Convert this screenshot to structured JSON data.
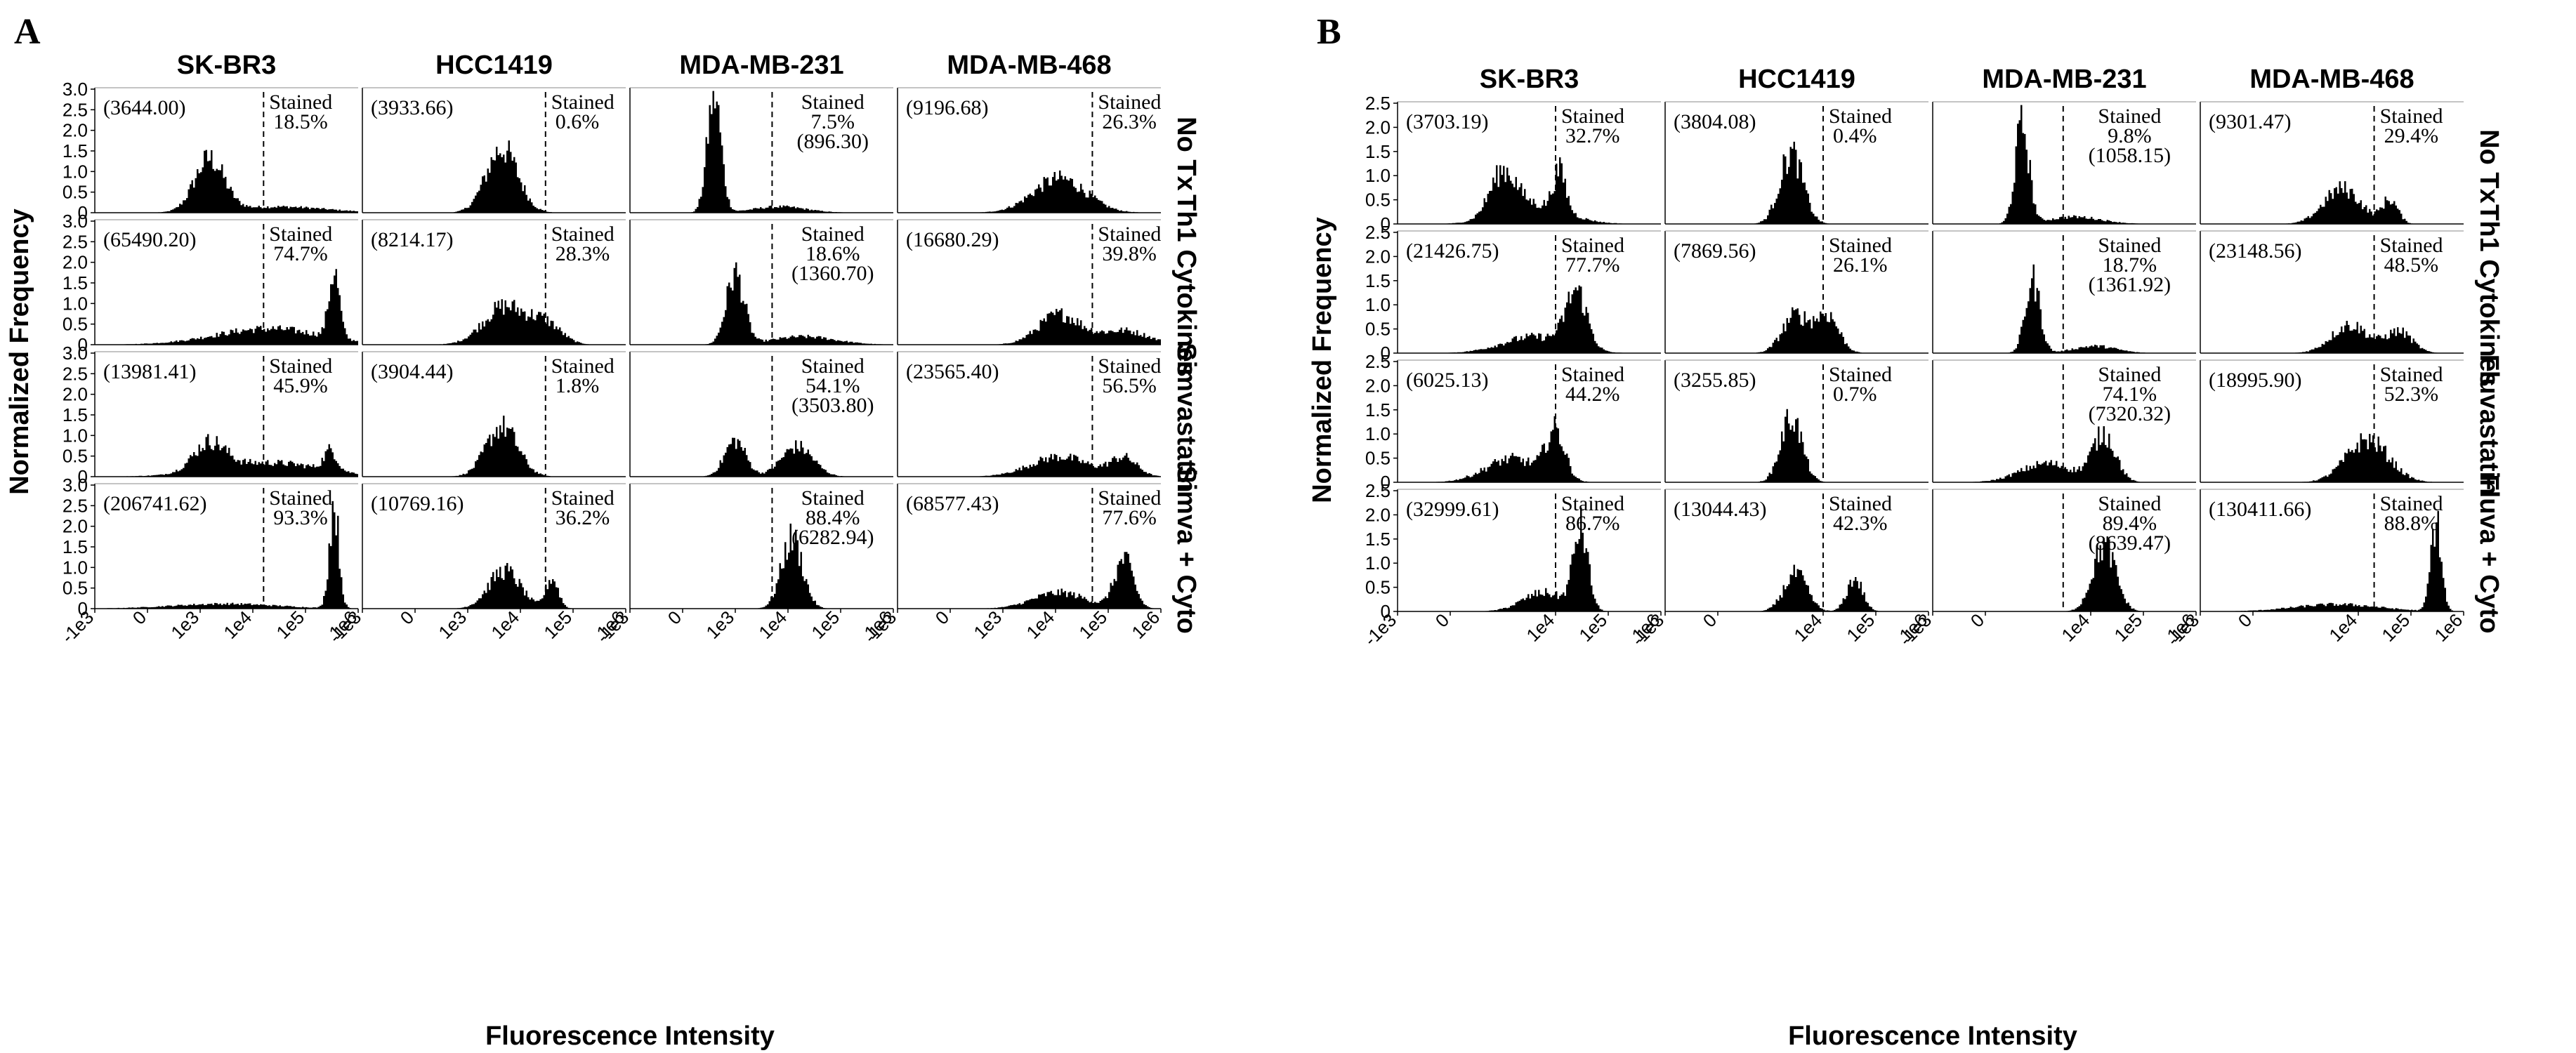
{
  "panels": [
    {
      "letter": "A",
      "x_label": "Fluorescence Intensity",
      "y_label": "Normalized Frequency",
      "y_ticks": [
        "0",
        "0.5",
        "1.0",
        "1.5",
        "2.0",
        "2.5",
        "3.0"
      ],
      "x_ticks": [
        "-1e3",
        "0",
        "1e3",
        "1e4",
        "1e5",
        "1e6"
      ],
      "columns": [
        "SK-BR3",
        "HCC1419",
        "MDA-MB-231",
        "MDA-MB-468"
      ],
      "rows": [
        "No Tx",
        "Th1 Cytokines",
        "Simvastatin",
        "Simva + Cyto"
      ]
    },
    {
      "letter": "B",
      "x_label": "Fluorescence Intensity",
      "y_label": "Normalized Frequency",
      "y_ticks": [
        "0",
        "0.5",
        "1.0",
        "1.5",
        "2.0",
        "2.5"
      ],
      "x_ticks": [
        "-1e3",
        "0",
        "1e4",
        "1e5",
        "1e6"
      ],
      "columns": [
        "SK-BR3",
        "HCC1419",
        "MDA-MB-231",
        "MDA-MB-468"
      ],
      "rows": [
        "No Tx",
        "Th1 Cytokines",
        "Fluvastatin",
        "Fluva + Cyto"
      ]
    }
  ],
  "chart_data": [
    {
      "type": "histogram",
      "panel": "A",
      "x_scale": "biexponential",
      "xlim": [
        "-1e3",
        "1e6"
      ],
      "ylim": [
        0,
        3.0
      ],
      "ylabel": "Normalized Frequency",
      "xlabel": "Fluorescence Intensity",
      "cells": [
        [
          {
            "mfi": "(3644.00)",
            "stained_label": "Stained",
            "stained_pct": "18.5%",
            "gate": "1.6e4",
            "peaks": [
              {
                "x": "1.5e3",
                "h": 1.3,
                "w": 0.28
              },
              {
                "x": "3e4",
                "h": 0.15,
                "w": 0.9
              }
            ]
          },
          {
            "mfi": "(3933.66)",
            "stained_label": "Stained",
            "stained_pct": "0.6%",
            "gate": "3e4",
            "peaks": [
              {
                "x": "4.5e3",
                "h": 1.6,
                "w": 0.3
              }
            ]
          },
          {
            "mfi": "(896.30)",
            "stained_label": "Stained",
            "stained_pct": "7.5%",
            "gate": "5e3",
            "peaks": [
              {
                "x": "6e2",
                "h": 2.95,
                "w": 0.13
              },
              {
                "x": "7e3",
                "h": 0.15,
                "w": 0.5
              }
            ]
          },
          {
            "mfi": "(9196.68)",
            "stained_label": "Stained",
            "stained_pct": "26.3%",
            "gate": "5e4",
            "peaks": [
              {
                "x": "1.2e4",
                "h": 0.85,
                "w": 0.5
              }
            ]
          }
        ],
        [
          {
            "mfi": "(65490.20)",
            "stained_label": "Stained",
            "stained_pct": "74.7%",
            "gate": "1.6e4",
            "peaks": [
              {
                "x": "2e4",
                "h": 0.4,
                "w": 1.0
              },
              {
                "x": "3.5e5",
                "h": 1.65,
                "w": 0.1
              }
            ]
          },
          {
            "mfi": "(8214.17)",
            "stained_label": "Stained",
            "stained_pct": "28.3%",
            "gate": "3e4",
            "peaks": [
              {
                "x": "5e3",
                "h": 0.95,
                "w": 0.4
              },
              {
                "x": "3e4",
                "h": 0.5,
                "w": 0.3
              }
            ]
          },
          {
            "mfi": "(1360.70)",
            "stained_label": "Stained",
            "stained_pct": "18.6%",
            "gate": "5e3",
            "peaks": [
              {
                "x": "1e3",
                "h": 1.75,
                "w": 0.17
              },
              {
                "x": "2e4",
                "h": 0.2,
                "w": 0.6
              }
            ]
          },
          {
            "mfi": "(16680.29)",
            "stained_label": "Stained",
            "stained_pct": "39.8%",
            "gate": "5e4",
            "peaks": [
              {
                "x": "1.2e4",
                "h": 0.75,
                "w": 0.4
              },
              {
                "x": "2e5",
                "h": 0.35,
                "w": 0.45
              }
            ]
          }
        ],
        [
          {
            "mfi": "(13981.41)",
            "stained_label": "Stained",
            "stained_pct": "45.9%",
            "gate": "1.6e4",
            "peaks": [
              {
                "x": "1.5e3",
                "h": 0.7,
                "w": 0.3
              },
              {
                "x": "2e4",
                "h": 0.35,
                "w": 1.0
              },
              {
                "x": "3e5",
                "h": 0.5,
                "w": 0.12
              }
            ]
          },
          {
            "mfi": "(3904.44)",
            "stained_label": "Stained",
            "stained_pct": "1.8%",
            "gate": "3e4",
            "peaks": [
              {
                "x": "4.5e3",
                "h": 1.25,
                "w": 0.3
              }
            ]
          },
          {
            "mfi": "(3503.80)",
            "stained_label": "Stained",
            "stained_pct": "54.1%",
            "gate": "5e3",
            "peaks": [
              {
                "x": "1e3",
                "h": 0.9,
                "w": 0.2
              },
              {
                "x": "1.5e4",
                "h": 0.75,
                "w": 0.3
              }
            ]
          },
          {
            "mfi": "(23565.40)",
            "stained_label": "Stained",
            "stained_pct": "56.5%",
            "gate": "5e4",
            "peaks": [
              {
                "x": "1.2e4",
                "h": 0.5,
                "w": 0.55
              },
              {
                "x": "2e5",
                "h": 0.45,
                "w": 0.25
              }
            ]
          }
        ],
        [
          {
            "mfi": "(206741.62)",
            "stained_label": "Stained",
            "stained_pct": "93.3%",
            "gate": "1.6e4",
            "peaks": [
              {
                "x": "3e3",
                "h": 0.12,
                "w": 1.0
              },
              {
                "x": "3.5e5",
                "h": 2.6,
                "w": 0.09
              }
            ]
          },
          {
            "mfi": "(10769.16)",
            "stained_label": "Stained",
            "stained_pct": "36.2%",
            "gate": "3e4",
            "peaks": [
              {
                "x": "5e3",
                "h": 0.95,
                "w": 0.3
              },
              {
                "x": "4e4",
                "h": 0.75,
                "w": 0.12
              }
            ]
          },
          {
            "mfi": "(6282.94)",
            "stained_label": "Stained",
            "stained_pct": "88.4%",
            "gate": "5e3",
            "peaks": [
              {
                "x": "1.2e4",
                "h": 1.75,
                "w": 0.2
              }
            ]
          },
          {
            "mfi": "(68577.43)",
            "stained_label": "Stained",
            "stained_pct": "77.6%",
            "gate": "5e4",
            "peaks": [
              {
                "x": "1.2e4",
                "h": 0.4,
                "w": 0.5
              },
              {
                "x": "2e5",
                "h": 1.2,
                "w": 0.18
              }
            ]
          }
        ]
      ]
    },
    {
      "type": "histogram",
      "panel": "B",
      "x_scale": "biexponential",
      "xlim": [
        "-1e3",
        "1e6"
      ],
      "ylim": [
        0,
        2.5
      ],
      "ylabel": "Normalized Frequency",
      "xlabel": "Fluorescence Intensity",
      "cells": [
        [
          {
            "mfi": "(3703.19)",
            "stained_label": "Stained",
            "stained_pct": "32.7%",
            "gate": "1e4",
            "peaks": [
              {
                "x": "1e3",
                "h": 0.9,
                "w": 0.25
              },
              {
                "x": "4e3",
                "h": 0.4,
                "w": 0.6
              },
              {
                "x": "1.2e4",
                "h": 0.85,
                "w": 0.12
              }
            ]
          },
          {
            "mfi": "(3804.08)",
            "stained_label": "Stained",
            "stained_pct": "0.4%",
            "gate": "1e4",
            "peaks": [
              {
                "x": "2.5e3",
                "h": 1.5,
                "w": 0.22
              }
            ]
          },
          {
            "mfi": "(1058.15)",
            "stained_label": "Stained",
            "stained_pct": "9.8%",
            "gate": "3e3",
            "peaks": [
              {
                "x": "7e2",
                "h": 2.1,
                "w": 0.13
              },
              {
                "x": "5e3",
                "h": 0.15,
                "w": 0.5
              }
            ]
          },
          {
            "mfi": "(9301.47)",
            "stained_label": "Stained",
            "stained_pct": "29.4%",
            "gate": "2e4",
            "peaks": [
              {
                "x": "5e3",
                "h": 0.75,
                "w": 0.35
              },
              {
                "x": "4e4",
                "h": 0.5,
                "w": 0.15
              }
            ]
          }
        ],
        [
          {
            "mfi": "(21426.75)",
            "stained_label": "Stained",
            "stained_pct": "77.7%",
            "gate": "1e4",
            "peaks": [
              {
                "x": "4e3",
                "h": 0.35,
                "w": 0.6
              },
              {
                "x": "2.5e4",
                "h": 1.2,
                "w": 0.2
              }
            ]
          },
          {
            "mfi": "(7869.56)",
            "stained_label": "Stained",
            "stained_pct": "26.1%",
            "gate": "1e4",
            "peaks": [
              {
                "x": "3e3",
                "h": 0.8,
                "w": 0.25
              },
              {
                "x": "1.2e4",
                "h": 0.8,
                "w": 0.22
              }
            ]
          },
          {
            "mfi": "(1361.92)",
            "stained_label": "Stained",
            "stained_pct": "18.7%",
            "gate": "3e3",
            "peaks": [
              {
                "x": "9e2",
                "h": 1.55,
                "w": 0.14
              },
              {
                "x": "1.2e4",
                "h": 0.15,
                "w": 0.4
              }
            ]
          },
          {
            "mfi": "(23148.56)",
            "stained_label": "Stained",
            "stained_pct": "48.5%",
            "gate": "2e4",
            "peaks": [
              {
                "x": "7e3",
                "h": 0.6,
                "w": 0.35
              },
              {
                "x": "6e4",
                "h": 0.45,
                "w": 0.25
              }
            ]
          }
        ],
        [
          {
            "mfi": "(6025.13)",
            "stained_label": "Stained",
            "stained_pct": "44.2%",
            "gate": "1e4",
            "peaks": [
              {
                "x": "1.5e3",
                "h": 0.5,
                "w": 0.5
              },
              {
                "x": "1e4",
                "h": 1.0,
                "w": 0.18
              }
            ]
          },
          {
            "mfi": "(3255.85)",
            "stained_label": "Stained",
            "stained_pct": "0.7%",
            "gate": "1e4",
            "peaks": [
              {
                "x": "2.5e3",
                "h": 1.4,
                "w": 0.2
              }
            ]
          },
          {
            "mfi": "(7320.32)",
            "stained_label": "Stained",
            "stained_pct": "74.1%",
            "gate": "3e3",
            "peaks": [
              {
                "x": "1.5e3",
                "h": 0.4,
                "w": 0.5
              },
              {
                "x": "1.8e4",
                "h": 1.0,
                "w": 0.22
              }
            ]
          },
          {
            "mfi": "(18995.90)",
            "stained_label": "Stained",
            "stained_pct": "52.3%",
            "gate": "2e4",
            "peaks": [
              {
                "x": "1.5e4",
                "h": 0.9,
                "w": 0.4
              }
            ]
          }
        ],
        [
          {
            "mfi": "(32999.61)",
            "stained_label": "Stained",
            "stained_pct": "86.7%",
            "gate": "1e4",
            "peaks": [
              {
                "x": "6e3",
                "h": 0.4,
                "w": 0.4
              },
              {
                "x": "3e4",
                "h": 1.7,
                "w": 0.14
              }
            ]
          },
          {
            "mfi": "(13044.43)",
            "stained_label": "Stained",
            "stained_pct": "42.3%",
            "gate": "1e4",
            "peaks": [
              {
                "x": "3e3",
                "h": 0.8,
                "w": 0.22
              },
              {
                "x": "4e4",
                "h": 0.7,
                "w": 0.15
              }
            ]
          },
          {
            "mfi": "(8639.47)",
            "stained_label": "Stained",
            "stained_pct": "89.4%",
            "gate": "3e3",
            "peaks": [
              {
                "x": "1.8e4",
                "h": 1.4,
                "w": 0.22
              }
            ]
          },
          {
            "mfi": "(130411.66)",
            "stained_label": "Stained",
            "stained_pct": "88.8%",
            "gate": "2e4",
            "peaks": [
              {
                "x": "4e3",
                "h": 0.15,
                "w": 0.8
              },
              {
                "x": "3e5",
                "h": 1.9,
                "w": 0.1
              }
            ]
          }
        ]
      ]
    }
  ]
}
